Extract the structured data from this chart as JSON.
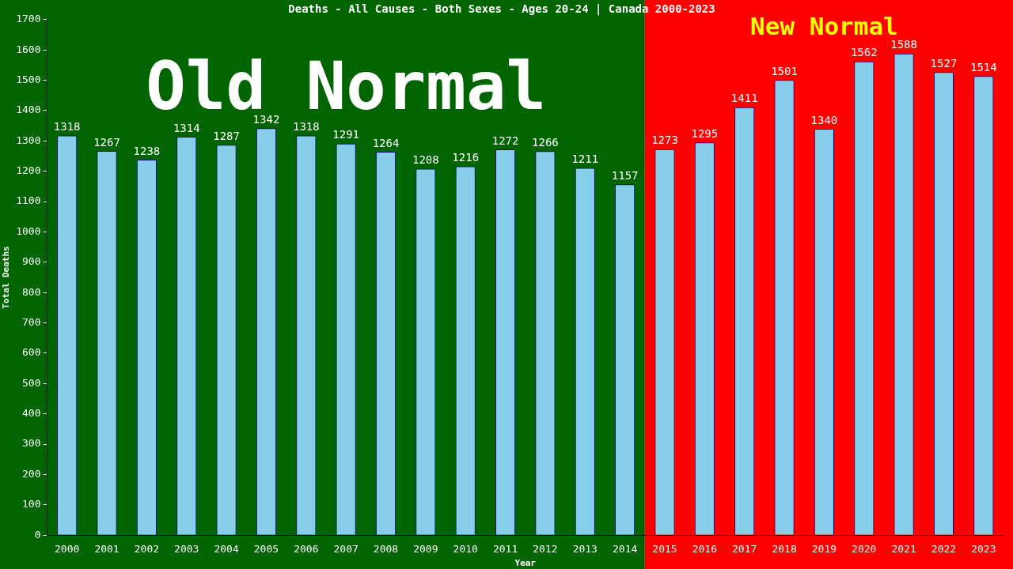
{
  "chart_data": {
    "type": "bar",
    "title": "Deaths - All Causes - Both Sexes - Ages 20-24 | Canada 2000-2023",
    "xlabel": "Year",
    "ylabel": "Total Deaths",
    "categories": [
      "2000",
      "2001",
      "2002",
      "2003",
      "2004",
      "2005",
      "2006",
      "2007",
      "2008",
      "2009",
      "2010",
      "2011",
      "2012",
      "2013",
      "2014",
      "2015",
      "2016",
      "2017",
      "2018",
      "2019",
      "2020",
      "2021",
      "2022",
      "2023"
    ],
    "values": [
      1318,
      1267,
      1238,
      1314,
      1287,
      1342,
      1318,
      1291,
      1264,
      1208,
      1216,
      1272,
      1266,
      1211,
      1157,
      1273,
      1295,
      1411,
      1501,
      1340,
      1562,
      1588,
      1527,
      1514
    ],
    "color": "#87ceeb",
    "ylim": [
      0,
      1700
    ],
    "yticks": [
      0,
      100,
      200,
      300,
      400,
      500,
      600,
      700,
      800,
      900,
      1000,
      1100,
      1200,
      1300,
      1400,
      1500,
      1600,
      1700
    ],
    "data_labels": true,
    "grid": false,
    "legend": false,
    "bands": [
      {
        "axis": "x",
        "from": "2000",
        "to": "2014",
        "label": "Old Normal",
        "color": "#006400"
      },
      {
        "axis": "x",
        "from": "2015",
        "to": "2023",
        "label": "New Normal",
        "color": "#ff0000"
      }
    ]
  }
}
